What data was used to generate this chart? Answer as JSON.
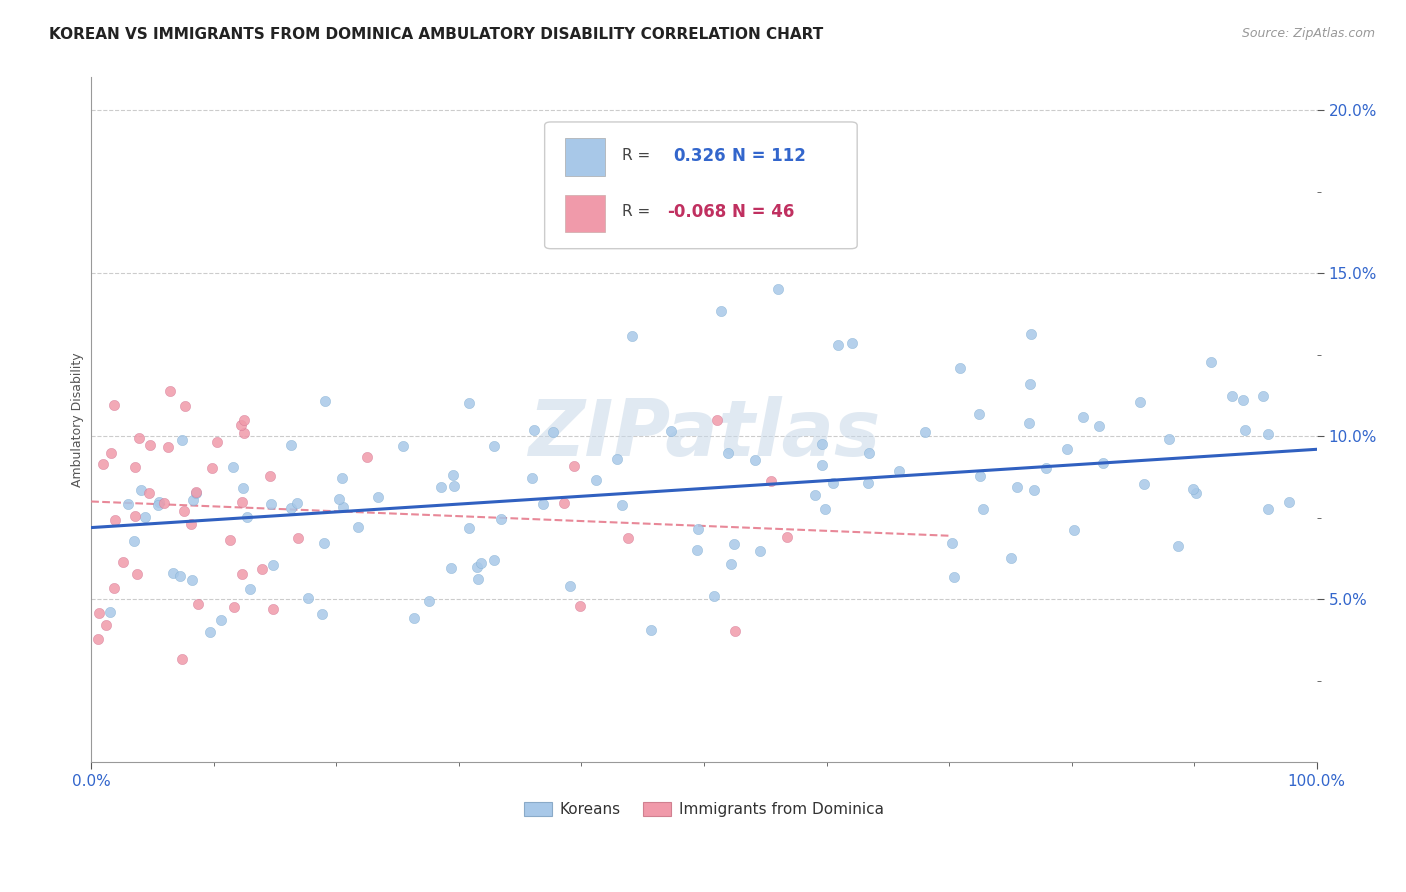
{
  "title": "KOREAN VS IMMIGRANTS FROM DOMINICA AMBULATORY DISABILITY CORRELATION CHART",
  "source": "Source: ZipAtlas.com",
  "ylabel": "Ambulatory Disability",
  "xlim": [
    0.0,
    1.0
  ],
  "ylim": [
    0.0,
    0.21
  ],
  "korean_R": 0.326,
  "korean_N": 112,
  "dominica_R": -0.068,
  "dominica_N": 46,
  "korean_color": "#a8c8e8",
  "dominica_color": "#f09aaa",
  "korean_line_color": "#3060c0",
  "dominica_line_color": "#e88898",
  "background_color": "#ffffff",
  "grid_color": "#cccccc",
  "grid_style": "--",
  "ytick_labels": [
    "5.0%",
    "10.0%",
    "15.0%",
    "20.0%"
  ],
  "ytick_vals": [
    0.05,
    0.1,
    0.15,
    0.2
  ],
  "xtick_labels": [
    "0.0%",
    "100.0%"
  ],
  "xtick_vals": [
    0.0,
    1.0
  ]
}
